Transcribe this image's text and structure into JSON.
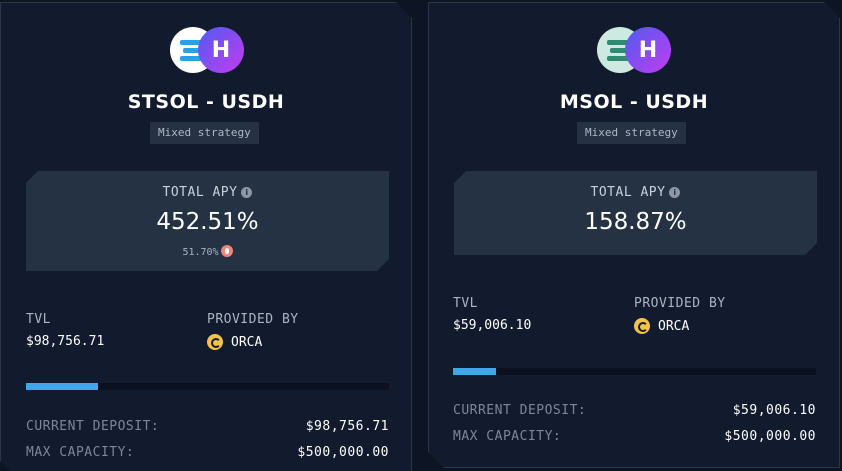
{
  "cards": [
    {
      "token_a_icon": "stsol-icon",
      "token_b_icon": "usdh-icon",
      "pair": "STSOL - USDH",
      "strategy": "Mixed strategy",
      "apy_label": "TOTAL APY",
      "apy_value": "452.51%",
      "apy_sub": "51.70%",
      "tvl_label": "TVL",
      "tvl_value": "$98,756.71",
      "provided_label": "PROVIDED BY",
      "provider": "ORCA",
      "progress": 0.1975,
      "deposit_label": "CURRENT DEPOSIT:",
      "deposit_value": "$98,756.71",
      "capacity_label": "MAX CAPACITY:",
      "capacity_value": "$500,000.00"
    },
    {
      "token_a_icon": "msol-icon",
      "token_b_icon": "usdh-icon",
      "pair": "MSOL - USDH",
      "strategy": "Mixed strategy",
      "apy_label": "TOTAL APY",
      "apy_value": "158.87%",
      "tvl_label": "TVL",
      "tvl_value": "$59,006.10",
      "provided_label": "PROVIDED BY",
      "provider": "ORCA",
      "progress": 0.118,
      "deposit_label": "CURRENT DEPOSIT:",
      "deposit_value": "$59,006.10",
      "capacity_label": "MAX CAPACITY:",
      "capacity_value": "$500,000.00"
    }
  ],
  "colors": {
    "background": "#0d1524",
    "card": "#111b2d",
    "apy_box": "#253244",
    "progress": "#3fa8e8"
  }
}
